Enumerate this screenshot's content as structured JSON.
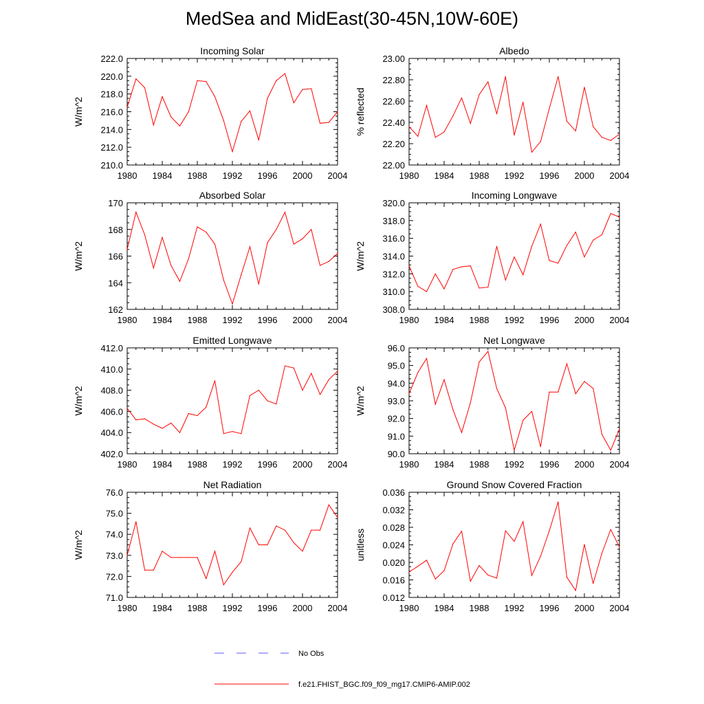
{
  "figure": {
    "title": "MedSea and MidEast(30-45N,10W-60E)",
    "line_color": "#ff0000",
    "obs_color": "#5a5aff"
  },
  "legend": {
    "obs_label": "No Obs",
    "model_label": "f.e21.FHIST_BGC.f09_f09_mg17.CMIP6-AMIP.002"
  },
  "chart_data": [
    {
      "type": "line",
      "title": "Incoming Solar",
      "ylabel": "W/m^2",
      "xlabel": "",
      "xlim": [
        1980,
        2004
      ],
      "ylim": [
        210,
        222
      ],
      "xticks": [
        1980,
        1984,
        1988,
        1992,
        1996,
        2000,
        2004
      ],
      "yticks": [
        "210.0",
        "212.0",
        "214.0",
        "216.0",
        "218.0",
        "220.0",
        "222.0"
      ],
      "x": [
        1980,
        1981,
        1982,
        1983,
        1984,
        1985,
        1986,
        1987,
        1988,
        1989,
        1990,
        1991,
        1992,
        1993,
        1994,
        1995,
        1996,
        1997,
        1998,
        1999,
        2000,
        2001,
        2002,
        2003,
        2004
      ],
      "series": [
        {
          "name": "f.e21.FHIST_BGC.f09_f09_mg17.CMIP6-AMIP.002",
          "values": [
            216.5,
            219.7,
            218.7,
            214.5,
            217.7,
            215.4,
            214.4,
            216.0,
            219.5,
            219.4,
            217.7,
            215.0,
            211.5,
            214.9,
            216.1,
            212.8,
            217.5,
            219.5,
            220.3,
            217.0,
            218.5,
            218.6,
            214.7,
            214.8,
            216.0
          ]
        }
      ]
    },
    {
      "type": "line",
      "title": "Albedo",
      "ylabel": "% reflected",
      "xlabel": "",
      "xlim": [
        1980,
        2004
      ],
      "ylim": [
        22.0,
        23.0
      ],
      "xticks": [
        1980,
        1984,
        1988,
        1992,
        1996,
        2000,
        2004
      ],
      "yticks": [
        "22.00",
        "22.20",
        "22.40",
        "22.60",
        "22.80",
        "23.00"
      ],
      "x": [
        1980,
        1981,
        1982,
        1983,
        1984,
        1985,
        1986,
        1987,
        1988,
        1989,
        1990,
        1991,
        1992,
        1993,
        1994,
        1995,
        1996,
        1997,
        1998,
        1999,
        2000,
        2001,
        2002,
        2003,
        2004
      ],
      "series": [
        {
          "name": "f.e21.FHIST_BGC.f09_f09_mg17.CMIP6-AMIP.002",
          "values": [
            22.36,
            22.27,
            22.56,
            22.26,
            22.31,
            22.46,
            22.63,
            22.39,
            22.66,
            22.78,
            22.48,
            22.83,
            22.28,
            22.59,
            22.12,
            22.22,
            22.53,
            22.83,
            22.41,
            22.32,
            22.73,
            22.36,
            22.26,
            22.23,
            22.29
          ]
        }
      ]
    },
    {
      "type": "line",
      "title": "Absorbed Solar",
      "ylabel": "W/m^2",
      "xlabel": "",
      "xlim": [
        1980,
        2004
      ],
      "ylim": [
        162,
        170
      ],
      "xticks": [
        1980,
        1984,
        1988,
        1992,
        1996,
        2000,
        2004
      ],
      "yticks": [
        "162",
        "164",
        "166",
        "168",
        "170"
      ],
      "x": [
        1980,
        1981,
        1982,
        1983,
        1984,
        1985,
        1986,
        1987,
        1988,
        1989,
        1990,
        1991,
        1992,
        1993,
        1994,
        1995,
        1996,
        1997,
        1998,
        1999,
        2000,
        2001,
        2002,
        2003,
        2004
      ],
      "series": [
        {
          "name": "f.e21.FHIST_BGC.f09_f09_mg17.CMIP6-AMIP.002",
          "values": [
            166.5,
            169.3,
            167.6,
            165.1,
            167.4,
            165.3,
            164.1,
            165.8,
            168.2,
            167.8,
            166.9,
            164.2,
            162.4,
            164.6,
            166.7,
            163.9,
            167.0,
            168.0,
            169.3,
            166.9,
            167.3,
            168.0,
            165.3,
            165.6,
            166.2
          ]
        }
      ]
    },
    {
      "type": "line",
      "title": "Incoming Longwave",
      "ylabel": "W/m^2",
      "xlabel": "",
      "xlim": [
        1980,
        2004
      ],
      "ylim": [
        308,
        320
      ],
      "xticks": [
        1980,
        1984,
        1988,
        1992,
        1996,
        2000,
        2004
      ],
      "yticks": [
        "308.0",
        "310.0",
        "312.0",
        "314.0",
        "316.0",
        "318.0",
        "320.0"
      ],
      "x": [
        1980,
        1981,
        1982,
        1983,
        1984,
        1985,
        1986,
        1987,
        1988,
        1989,
        1990,
        1991,
        1992,
        1993,
        1994,
        1995,
        1996,
        1997,
        1998,
        1999,
        2000,
        2001,
        2002,
        2003,
        2004
      ],
      "series": [
        {
          "name": "f.e21.FHIST_BGC.f09_f09_mg17.CMIP6-AMIP.002",
          "values": [
            312.9,
            310.6,
            310.0,
            312.0,
            310.3,
            312.5,
            312.8,
            312.9,
            310.4,
            310.5,
            315.1,
            311.3,
            313.9,
            311.9,
            315.1,
            317.6,
            313.5,
            313.2,
            315.2,
            316.7,
            313.9,
            315.8,
            316.4,
            318.8,
            318.4
          ]
        }
      ]
    },
    {
      "type": "line",
      "title": "Emitted Longwave",
      "ylabel": "W/m^2",
      "xlabel": "",
      "xlim": [
        1980,
        2004
      ],
      "ylim": [
        402,
        412
      ],
      "xticks": [
        1980,
        1984,
        1988,
        1992,
        1996,
        2000,
        2004
      ],
      "yticks": [
        "402.0",
        "404.0",
        "406.0",
        "408.0",
        "410.0",
        "412.0"
      ],
      "x": [
        1980,
        1981,
        1982,
        1983,
        1984,
        1985,
        1986,
        1987,
        1988,
        1989,
        1990,
        1991,
        1992,
        1993,
        1994,
        1995,
        1996,
        1997,
        1998,
        1999,
        2000,
        2001,
        2002,
        2003,
        2004
      ],
      "series": [
        {
          "name": "f.e21.FHIST_BGC.f09_f09_mg17.CMIP6-AMIP.002",
          "values": [
            406.3,
            405.2,
            405.3,
            404.8,
            404.4,
            404.9,
            404.0,
            405.8,
            405.6,
            406.4,
            408.9,
            403.9,
            404.1,
            403.9,
            407.5,
            408.0,
            407.0,
            406.7,
            410.3,
            410.1,
            408.0,
            409.6,
            407.6,
            409.0,
            409.8
          ]
        }
      ]
    },
    {
      "type": "line",
      "title": "Net Longwave",
      "ylabel": "W/m^2",
      "xlabel": "",
      "xlim": [
        1980,
        2004
      ],
      "ylim": [
        90,
        96
      ],
      "xticks": [
        1980,
        1984,
        1988,
        1992,
        1996,
        2000,
        2004
      ],
      "yticks": [
        "90.0",
        "91.0",
        "92.0",
        "93.0",
        "94.0",
        "95.0",
        "96.0"
      ],
      "x": [
        1980,
        1981,
        1982,
        1983,
        1984,
        1985,
        1986,
        1987,
        1988,
        1989,
        1990,
        1991,
        1992,
        1993,
        1994,
        1995,
        1996,
        1997,
        1998,
        1999,
        2000,
        2001,
        2002,
        2003,
        2004
      ],
      "series": [
        {
          "name": "f.e21.FHIST_BGC.f09_f09_mg17.CMIP6-AMIP.002",
          "values": [
            93.4,
            94.6,
            95.4,
            92.8,
            94.2,
            92.5,
            91.2,
            92.9,
            95.2,
            95.8,
            93.7,
            92.6,
            90.2,
            91.9,
            92.4,
            90.4,
            93.5,
            93.5,
            95.1,
            93.4,
            94.1,
            93.7,
            91.1,
            90.2,
            91.4
          ]
        }
      ]
    },
    {
      "type": "line",
      "title": "Net Radiation",
      "ylabel": "W/m^2",
      "xlabel": "",
      "xlim": [
        1980,
        2004
      ],
      "ylim": [
        71,
        76
      ],
      "xticks": [
        1980,
        1984,
        1988,
        1992,
        1996,
        2000,
        2004
      ],
      "yticks": [
        "71.0",
        "72.0",
        "73.0",
        "74.0",
        "75.0",
        "76.0"
      ],
      "x": [
        1980,
        1981,
        1982,
        1983,
        1984,
        1985,
        1986,
        1987,
        1988,
        1989,
        1990,
        1991,
        1992,
        1993,
        1994,
        1995,
        1996,
        1997,
        1998,
        1999,
        2000,
        2001,
        2002,
        2003,
        2004
      ],
      "series": [
        {
          "name": "f.e21.FHIST_BGC.f09_f09_mg17.CMIP6-AMIP.002",
          "values": [
            73.0,
            74.6,
            72.3,
            72.3,
            73.2,
            72.9,
            72.9,
            72.9,
            72.9,
            71.9,
            73.2,
            71.6,
            72.2,
            72.7,
            74.3,
            73.5,
            73.5,
            74.4,
            74.2,
            73.6,
            73.2,
            74.2,
            74.2,
            75.4,
            74.8
          ]
        }
      ]
    },
    {
      "type": "line",
      "title": "Ground Snow Covered Fraction",
      "ylabel": "unitless",
      "xlabel": "",
      "xlim": [
        1980,
        2004
      ],
      "ylim": [
        0.012,
        0.036
      ],
      "xticks": [
        1980,
        1984,
        1988,
        1992,
        1996,
        2000,
        2004
      ],
      "yticks": [
        "0.012",
        "0.016",
        "0.020",
        "0.024",
        "0.028",
        "0.032",
        "0.036"
      ],
      "x": [
        1980,
        1981,
        1982,
        1983,
        1984,
        1985,
        1986,
        1987,
        1988,
        1989,
        1990,
        1991,
        1992,
        1993,
        1994,
        1995,
        1996,
        1997,
        1998,
        1999,
        2000,
        2001,
        2002,
        2003,
        2004
      ],
      "series": [
        {
          "name": "f.e21.FHIST_BGC.f09_f09_mg17.CMIP6-AMIP.002",
          "values": [
            0.0178,
            0.0191,
            0.0205,
            0.0162,
            0.0181,
            0.0242,
            0.0271,
            0.0157,
            0.0193,
            0.0171,
            0.0164,
            0.0272,
            0.0248,
            0.0293,
            0.017,
            0.0214,
            0.0272,
            0.0338,
            0.0166,
            0.0136,
            0.0241,
            0.0152,
            0.0221,
            0.0275,
            0.0235
          ]
        }
      ]
    }
  ]
}
